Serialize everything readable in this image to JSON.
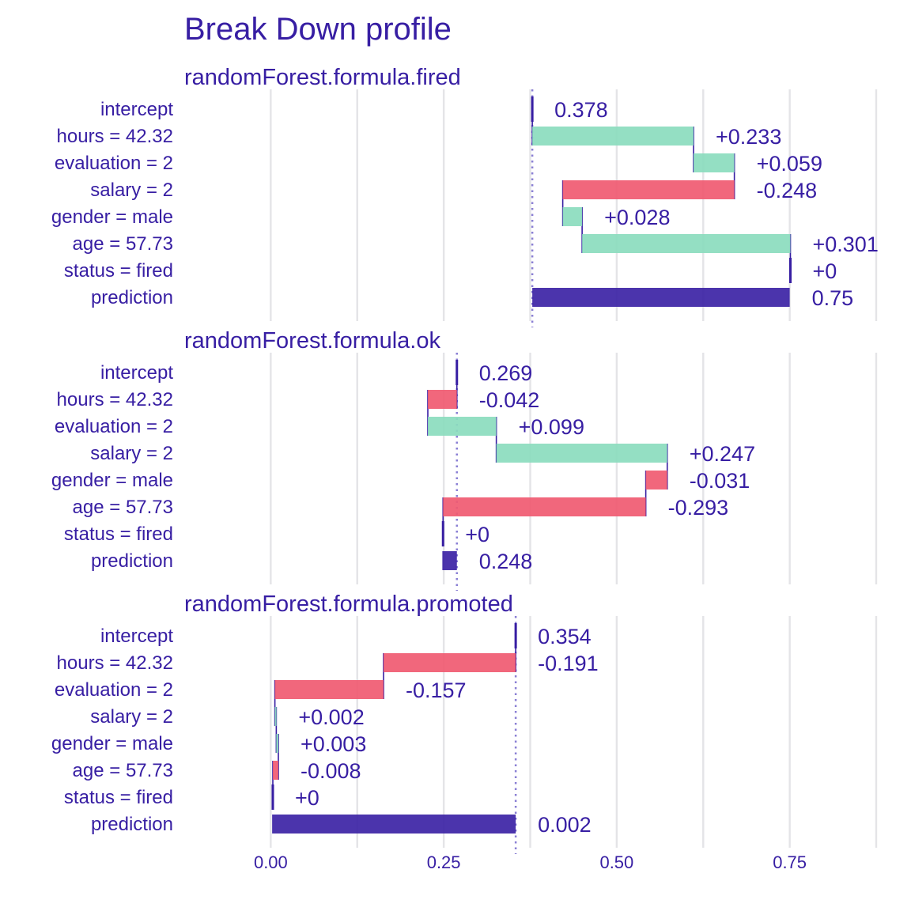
{
  "chart_data": {
    "type": "bar",
    "title": "Break Down profile",
    "xlim": [
      -0.125,
      0.875
    ],
    "x_ticks": [
      0.0,
      0.25,
      0.5,
      0.75
    ],
    "x_tick_labels": [
      "0.00",
      "0.25",
      "0.50",
      "0.75"
    ],
    "colors": {
      "positive": "#8bdcbe",
      "negative": "#f05a71",
      "prediction": "#371ea3",
      "text": "#371ea3",
      "connector": "#371ea3",
      "baseline": "#8a7fd4"
    },
    "panels": [
      {
        "name": "randomForest.formula.fired",
        "baseline": 0.378,
        "rows": [
          {
            "variable": "intercept",
            "start": 0.378,
            "end": 0.378,
            "label": "0.378",
            "kind": "intercept"
          },
          {
            "variable": "hours = 42.32",
            "start": 0.378,
            "end": 0.611,
            "label": "+0.233",
            "kind": "positive"
          },
          {
            "variable": "evaluation = 2",
            "start": 0.611,
            "end": 0.67,
            "label": "+0.059",
            "kind": "positive"
          },
          {
            "variable": "salary = 2",
            "start": 0.67,
            "end": 0.422,
            "label": "-0.248",
            "kind": "negative"
          },
          {
            "variable": "gender = male",
            "start": 0.422,
            "end": 0.45,
            "label": "+0.028",
            "kind": "positive"
          },
          {
            "variable": "age = 57.73",
            "start": 0.45,
            "end": 0.751,
            "label": "+0.301",
            "kind": "positive"
          },
          {
            "variable": "status = fired",
            "start": 0.751,
            "end": 0.751,
            "label": "+0",
            "kind": "zero"
          },
          {
            "variable": "prediction",
            "start": 0.378,
            "end": 0.75,
            "label": "0.75",
            "kind": "prediction"
          }
        ]
      },
      {
        "name": "randomForest.formula.ok",
        "baseline": 0.269,
        "rows": [
          {
            "variable": "intercept",
            "start": 0.269,
            "end": 0.269,
            "label": "0.269",
            "kind": "intercept"
          },
          {
            "variable": "hours = 42.32",
            "start": 0.269,
            "end": 0.227,
            "label": "-0.042",
            "kind": "negative"
          },
          {
            "variable": "evaluation = 2",
            "start": 0.227,
            "end": 0.326,
            "label": "+0.099",
            "kind": "positive"
          },
          {
            "variable": "salary = 2",
            "start": 0.326,
            "end": 0.573,
            "label": "+0.247",
            "kind": "positive"
          },
          {
            "variable": "gender = male",
            "start": 0.573,
            "end": 0.542,
            "label": "-0.031",
            "kind": "negative"
          },
          {
            "variable": "age = 57.73",
            "start": 0.542,
            "end": 0.249,
            "label": "-0.293",
            "kind": "negative"
          },
          {
            "variable": "status = fired",
            "start": 0.249,
            "end": 0.249,
            "label": "+0",
            "kind": "zero"
          },
          {
            "variable": "prediction",
            "start": 0.269,
            "end": 0.248,
            "label": "0.248",
            "kind": "prediction"
          }
        ]
      },
      {
        "name": "randomForest.formula.promoted",
        "baseline": 0.354,
        "rows": [
          {
            "variable": "intercept",
            "start": 0.354,
            "end": 0.354,
            "label": "0.354",
            "kind": "intercept"
          },
          {
            "variable": "hours = 42.32",
            "start": 0.354,
            "end": 0.163,
            "label": "-0.191",
            "kind": "negative"
          },
          {
            "variable": "evaluation = 2",
            "start": 0.163,
            "end": 0.006,
            "label": "-0.157",
            "kind": "negative"
          },
          {
            "variable": "salary = 2",
            "start": 0.006,
            "end": 0.008,
            "label": "+0.002",
            "kind": "positive"
          },
          {
            "variable": "gender = male",
            "start": 0.008,
            "end": 0.011,
            "label": "+0.003",
            "kind": "positive"
          },
          {
            "variable": "age = 57.73",
            "start": 0.011,
            "end": 0.003,
            "label": "-0.008",
            "kind": "negative"
          },
          {
            "variable": "status = fired",
            "start": 0.003,
            "end": 0.003,
            "label": "+0",
            "kind": "zero"
          },
          {
            "variable": "prediction",
            "start": 0.354,
            "end": 0.002,
            "label": "0.002",
            "kind": "prediction"
          }
        ]
      }
    ]
  }
}
